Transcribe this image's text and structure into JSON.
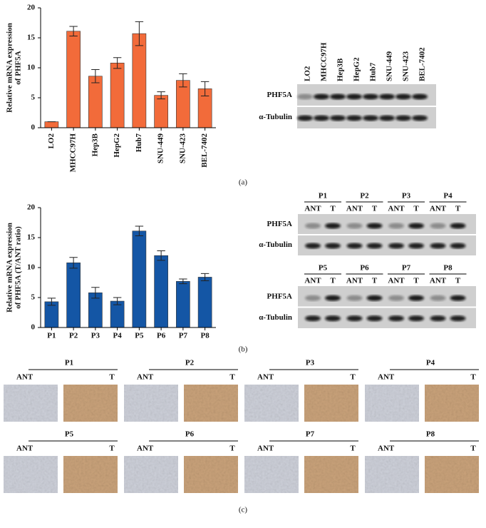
{
  "chart_data": [
    {
      "type": "bar",
      "ylabel": [
        "Relative mRNA expression",
        "of PHF5A"
      ],
      "categories": [
        "LO2",
        "MHCC97H",
        "Hep3B",
        "HepG2",
        "Hub7",
        "SNU-449",
        "SNU-423",
        "BEL-7402"
      ],
      "values": [
        1,
        16.1,
        8.6,
        10.8,
        15.7,
        5.4,
        7.9,
        6.5
      ],
      "errors": [
        0,
        0.8,
        1.1,
        0.9,
        2.0,
        0.6,
        1.1,
        1.2
      ],
      "color": "#f26b3a",
      "ylim": [
        0,
        20
      ],
      "yticks": [
        0,
        5,
        10,
        15,
        20
      ]
    },
    {
      "type": "bar",
      "ylabel": [
        "Relative mRNA expression",
        "of PHF5A (T/ANT ratio)"
      ],
      "categories": [
        "P1",
        "P2",
        "P3",
        "P4",
        "P5",
        "P6",
        "P7",
        "P8"
      ],
      "values": [
        4.3,
        10.8,
        5.8,
        4.4,
        16.1,
        12.0,
        7.7,
        8.4
      ],
      "errors": [
        0.6,
        0.9,
        0.9,
        0.6,
        0.8,
        0.8,
        0.4,
        0.6
      ],
      "color": "#1456a5",
      "ylim": [
        0,
        20
      ],
      "yticks": [
        0,
        5,
        10,
        15,
        20
      ]
    }
  ],
  "panel_labels": [
    "(a)",
    "(b)",
    "(c)"
  ],
  "blot_a": {
    "lanes": [
      "LO2",
      "MHCC97H",
      "Hep3B",
      "HepG2",
      "Hub7",
      "SNU-449",
      "SNU-423",
      "BEL-7402"
    ],
    "rows": [
      "PHF5A",
      "α-Tubulin"
    ]
  },
  "blot_b": [
    {
      "groups": [
        {
          "label": "P1",
          "lanes": [
            "ANT",
            "T"
          ]
        },
        {
          "label": "P2",
          "lanes": [
            "ANT",
            "T"
          ]
        },
        {
          "label": "P3",
          "lanes": [
            "ANT",
            "T"
          ]
        },
        {
          "label": "P4",
          "lanes": [
            "ANT",
            "T"
          ]
        }
      ],
      "rows": [
        "PHF5A",
        "α-Tubulin"
      ]
    },
    {
      "groups": [
        {
          "label": "P5",
          "lanes": [
            "ANT",
            "T"
          ]
        },
        {
          "label": "P6",
          "lanes": [
            "ANT",
            "T"
          ]
        },
        {
          "label": "P7",
          "lanes": [
            "ANT",
            "T"
          ]
        },
        {
          "label": "P8",
          "lanes": [
            "ANT",
            "T"
          ]
        }
      ],
      "rows": [
        "PHF5A",
        "α-Tubulin"
      ]
    }
  ],
  "ihc": [
    {
      "label": "P1",
      "lanes": [
        "ANT",
        "T"
      ]
    },
    {
      "label": "P2",
      "lanes": [
        "ANT",
        "T"
      ]
    },
    {
      "label": "P3",
      "lanes": [
        "ANT",
        "T"
      ]
    },
    {
      "label": "P4",
      "lanes": [
        "ANT",
        "T"
      ]
    },
    {
      "label": "P5",
      "lanes": [
        "ANT",
        "T"
      ]
    },
    {
      "label": "P6",
      "lanes": [
        "ANT",
        "T"
      ]
    },
    {
      "label": "P7",
      "lanes": [
        "ANT",
        "T"
      ]
    },
    {
      "label": "P8",
      "lanes": [
        "ANT",
        "T"
      ]
    }
  ]
}
